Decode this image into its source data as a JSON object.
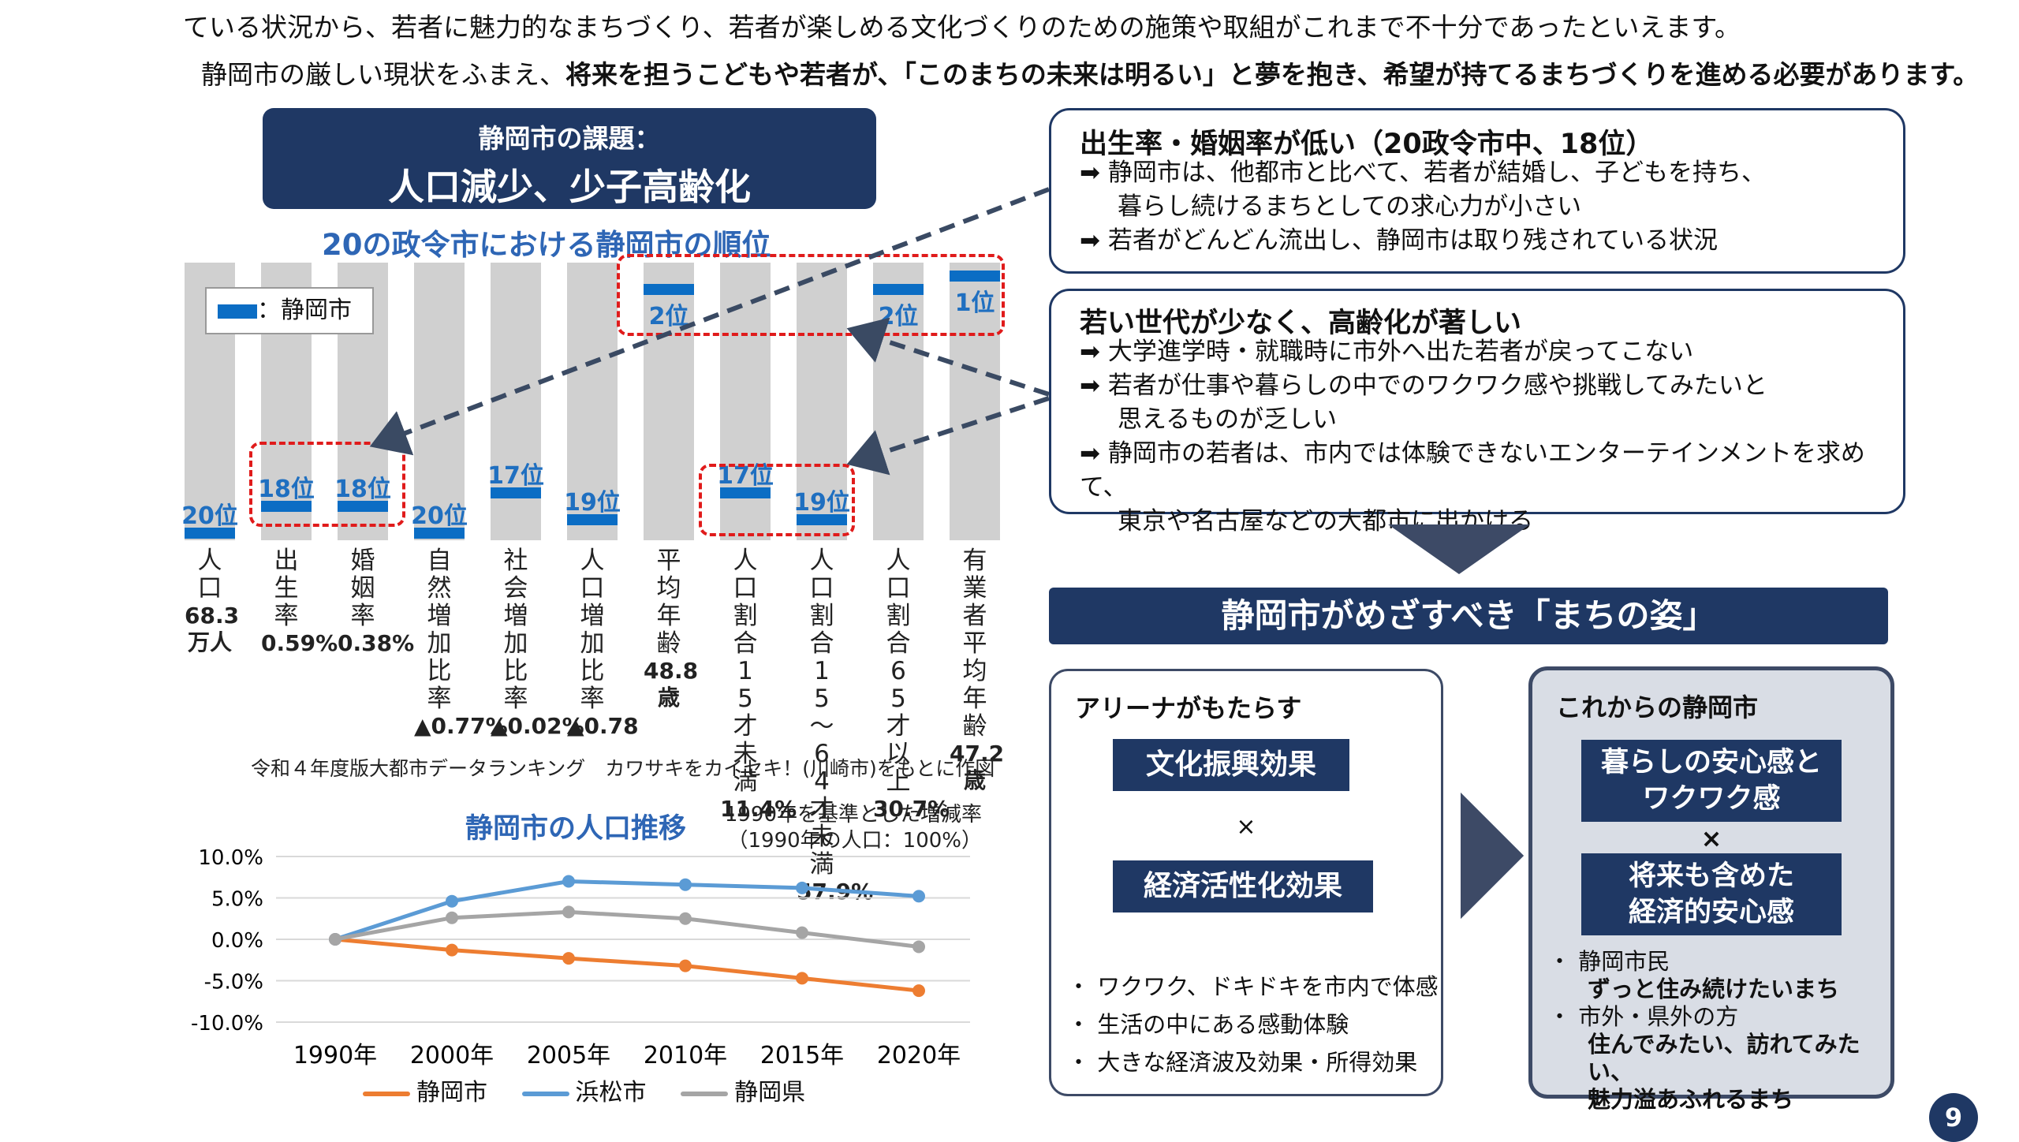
{
  "intro": {
    "line1": "ている状況から、若者に魅力的なまちづくり、若者が楽しめる文化づくりのための施策や取組がこれまで不十分であったといえます。",
    "line2_a": "静岡市の厳しい現状をふまえ、",
    "line2_b": "将来を担うこどもや若者が、「このまちの未来は明るい」と夢を抱き、希望が持てるまちづくりを進める必要があります。"
  },
  "issue_header": {
    "line1": "静岡市の課題：",
    "line2": "人口減少、少子高齢化"
  },
  "rank_chart": {
    "title": "20の政令市における静岡市の順位",
    "legend": "：静岡市",
    "source": "令和４年度版大都市データランキング　カワサキをカイセキ！(川崎市)をもとに作図",
    "columns": [
      {
        "label": "人口",
        "value": "68.3万人",
        "rank": "20位",
        "rank_num": 20
      },
      {
        "label": "出生率",
        "value": "0.59%",
        "rank": "18位",
        "rank_num": 18
      },
      {
        "label": "婚姻率",
        "value": "0.38%",
        "rank": "18位",
        "rank_num": 18
      },
      {
        "label": "自然増加比率",
        "value": "▲0.77%",
        "rank": "20位",
        "rank_num": 20
      },
      {
        "label": "社会増加比率",
        "value": "▲0.02%",
        "rank": "17位",
        "rank_num": 17
      },
      {
        "label": "人口増加比率",
        "value": "▲0.78",
        "rank": "19位",
        "rank_num": 19
      },
      {
        "label": "平均年齢",
        "value": "48.8歳",
        "rank": "2位",
        "rank_num": 2
      },
      {
        "label": "人口割合15才未満",
        "value": "11.4%",
        "rank": "17位",
        "rank_num": 17
      },
      {
        "label": "人口割合15～64才未満",
        "value": "57.9%",
        "rank": "19位",
        "rank_num": 19
      },
      {
        "label": "人口割合65才以上",
        "value": "30.7%",
        "rank": "2位",
        "rank_num": 2
      },
      {
        "label": "有業者平均年齢",
        "value": "47.2歳",
        "rank": "1位",
        "rank_num": 1
      }
    ]
  },
  "chart_data": {
    "type": "line",
    "title": "静岡市の人口推移",
    "subtitle": "1990年を基準とした増減率（1990年の人口：100%）",
    "categories": [
      "1990年",
      "2000年",
      "2005年",
      "2010年",
      "2015年",
      "2020年"
    ],
    "series": [
      {
        "name": "静岡市",
        "color": "#ed7d31",
        "values": [
          0.0,
          -1.3,
          -2.3,
          -3.2,
          -4.7,
          -6.2
        ]
      },
      {
        "name": "浜松市",
        "color": "#5b9bd5",
        "values": [
          0.0,
          4.6,
          7.0,
          6.6,
          6.2,
          5.2
        ]
      },
      {
        "name": "静岡県",
        "color": "#a5a5a5",
        "values": [
          0.0,
          2.6,
          3.3,
          2.5,
          0.8,
          -0.9
        ]
      }
    ],
    "ylim": [
      -10,
      10
    ],
    "yticks": [
      "10.0%",
      "5.0%",
      "0.0%",
      "-5.0%",
      "-10.0%"
    ],
    "grid": true,
    "legend": "bottom"
  },
  "box1": {
    "title": "出生率・婚姻率が低い（20政令市中、18位）",
    "items": [
      {
        "l1": "静岡市は、他都市と比べて、若者が結婚し、子どもを持ち、",
        "l2": "暮らし続けるまちとしての求心力が小さい"
      },
      {
        "l1": "若者がどんどん流出し、静岡市は取り残されている状況",
        "l2": ""
      }
    ]
  },
  "box2": {
    "title": "若い世代が少なく、高齢化が著しい",
    "items": [
      {
        "l1": "大学進学時・就職時に市外へ出た若者が戻ってこない",
        "l2": ""
      },
      {
        "l1": "若者が仕事や暮らしの中でのワクワク感や挑戦してみたいと",
        "l2": "思えるものが乏しい"
      },
      {
        "l1": "静岡市の若者は、市内では体験できないエンターテインメントを求めて、",
        "l2": "東京や名古屋などの大都市に出かける"
      }
    ]
  },
  "vision_header": "静岡市がめざすべき「まちの姿」",
  "arena": {
    "title": "アリーナがもたらす",
    "effect1": "文化振興効果",
    "times": "×",
    "effect2": "経済活性化効果",
    "bullets": [
      "ワクワク、ドキドキを市内で体感",
      "生活の中にある感動体験",
      "大きな経済波及効果・所得効果"
    ]
  },
  "future": {
    "title": "これからの静岡市",
    "box1_l1": "暮らしの安心感と",
    "box1_l2": "ワクワク感",
    "times": "×",
    "box2_l1": "将来も含めた",
    "box2_l2": "経済的安心感",
    "b1_head": "静岡市民",
    "b1_text": "ずっと住み続けたいまち",
    "b2_head": "市外・県外の方",
    "b2_text_l1": "住んでみたい、訪れてみたい、",
    "b2_text_l2": "魅力溢あふれるまち"
  },
  "page_number": "9"
}
